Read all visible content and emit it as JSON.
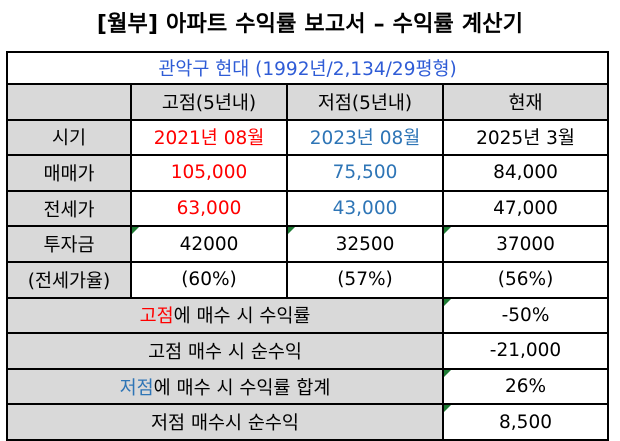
{
  "title": "[월부] 아파트 수익률 보고서 – 수익률 계산기",
  "location": "관악구 현대 (1992년/2,134/29평형)",
  "headers": {
    "blank": "",
    "high": "고점(5년내)",
    "low": "저점(5년내)",
    "now": "현재"
  },
  "rows": {
    "time": {
      "label": "시기",
      "high": "2021년 08월",
      "low": "2023년 08월",
      "now": "2025년 3월"
    },
    "sale": {
      "label": "매매가",
      "high": "105,000",
      "low": "75,500",
      "now": "84,000"
    },
    "jeonse": {
      "label": "전세가",
      "high": "63,000",
      "low": "43,000",
      "now": "47,000"
    },
    "invest": {
      "label": "투자금",
      "high": "42000",
      "low": "32500",
      "now": "37000"
    },
    "ratio": {
      "label": "(전세가율)",
      "high": "(60%)",
      "low": "(57%)",
      "now": "(56%)"
    }
  },
  "summary": {
    "high_return": {
      "highlight": "고점",
      "rest": "에 매수 시 수익률",
      "value": "-50%"
    },
    "high_profit": {
      "label": "고점 매수 시 순수익",
      "value": "-21,000"
    },
    "low_return": {
      "highlight": "저점",
      "rest": "에 매수 시 수익률 합계",
      "value": "26%"
    },
    "low_profit": {
      "label": "저점 매수시 순수익",
      "value": "8,500"
    }
  },
  "colors": {
    "high": "#ff0000",
    "low": "#2e75b6",
    "location": "#2f5cd6",
    "header_bg": "#d9d9d9",
    "comment_marker": "#1e7b34"
  }
}
